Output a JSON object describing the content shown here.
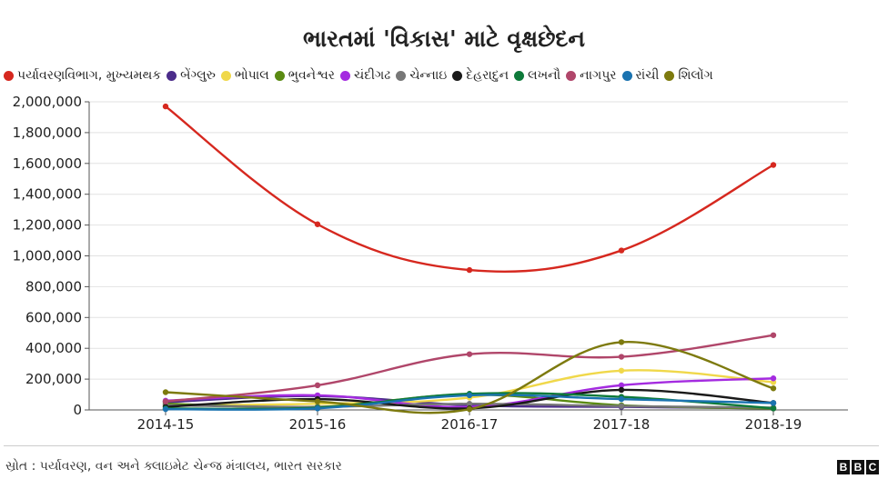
{
  "chart_data": {
    "type": "line",
    "title": "ભારતમાં 'વિકાસ' માટે વૃક્ષછેદન",
    "xlabel": "",
    "ylabel": "",
    "categories": [
      "2014-15",
      "2015-16",
      "2016-17",
      "2017-18",
      "2018-19"
    ],
    "ylim": [
      0,
      2000000
    ],
    "yticks": [
      0,
      200000,
      400000,
      600000,
      800000,
      1000000,
      1200000,
      1400000,
      1600000,
      1800000,
      2000000
    ],
    "ytick_labels": [
      "0",
      "200,000",
      "400,000",
      "600,000",
      "800,000",
      "1,000,000",
      "1,200,000",
      "1,400,000",
      "1,600,000",
      "1,800,000",
      "2,000,000"
    ],
    "grid": true,
    "legend_position": "top",
    "series": [
      {
        "name": "પર્યાવરણવિભાગ, મુખ્યમથક",
        "color": "#d6281f",
        "values": [
          1970000,
          1205000,
          908000,
          1035000,
          1590000
        ]
      },
      {
        "name": "બેંગ્લુરુ",
        "color": "#4b2c8a",
        "values": [
          50000,
          90000,
          30000,
          20000,
          10000
        ]
      },
      {
        "name": "ભોપાલ",
        "color": "#f0d84a",
        "values": [
          30000,
          40000,
          80000,
          255000,
          180000
        ]
      },
      {
        "name": "ભુવનેશ્વર",
        "color": "#5a8a12",
        "values": [
          40000,
          20000,
          100000,
          30000,
          10000
        ]
      },
      {
        "name": "ચંદીગઢ",
        "color": "#a42be0",
        "values": [
          60000,
          95000,
          20000,
          160000,
          205000
        ]
      },
      {
        "name": "ચેન્નાઇ",
        "color": "#777777",
        "values": [
          30000,
          20000,
          40000,
          25000,
          15000
        ]
      },
      {
        "name": "દેહરાદુન",
        "color": "#1a1a1a",
        "values": [
          20000,
          70000,
          10000,
          130000,
          45000
        ]
      },
      {
        "name": "લખનૌ",
        "color": "#0e7a3a",
        "values": [
          10000,
          15000,
          105000,
          85000,
          10000
        ]
      },
      {
        "name": "નાગપુર",
        "color": "#b0466a",
        "values": [
          55000,
          160000,
          362000,
          345000,
          485000
        ]
      },
      {
        "name": "રાંચી",
        "color": "#1a73b0",
        "values": [
          5000,
          10000,
          95000,
          70000,
          45000
        ]
      },
      {
        "name": "શિલોંગ",
        "color": "#7d7a0e",
        "values": [
          115000,
          55000,
          5000,
          440000,
          140000
        ]
      }
    ]
  },
  "footer": {
    "source": "સ્રોત : પર્યાવરણ, વન અને ક્લાઇમેટ ચેન્જ મંત્રાલય, ભારત સરકાર",
    "logo_letters": [
      "B",
      "B",
      "C"
    ]
  }
}
